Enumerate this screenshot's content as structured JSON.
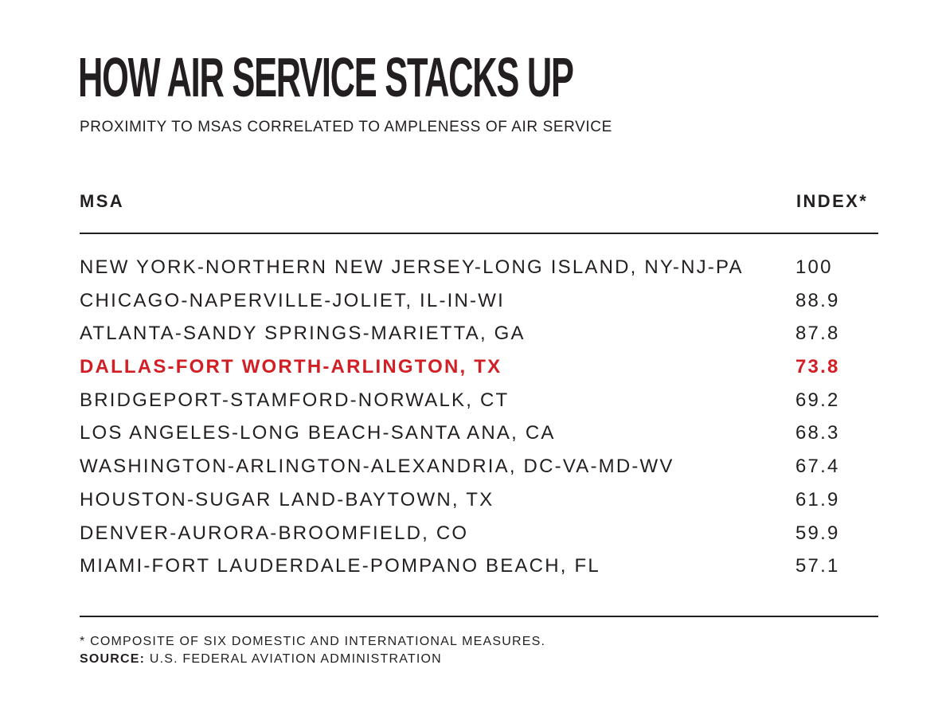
{
  "chart_data": {
    "type": "table",
    "title": "HOW AIR SERVICE STACKS UP",
    "subtitle": "PROXIMITY TO MSAS CORRELATED TO AMPLENESS OF AIR SERVICE",
    "columns": [
      "MSA",
      "INDEX*"
    ],
    "rows": [
      {
        "msa": "NEW YORK-NORTHERN NEW JERSEY-LONG ISLAND, NY-NJ-PA",
        "index": "100"
      },
      {
        "msa": "CHICAGO-NAPERVILLE-JOLIET, IL-IN-WI",
        "index": "88.9"
      },
      {
        "msa": "ATLANTA-SANDY SPRINGS-MARIETTA, GA",
        "index": "87.8"
      },
      {
        "msa": "DALLAS-FORT WORTH-ARLINGTON, TX",
        "index": "73.8",
        "highlight": true
      },
      {
        "msa": "BRIDGEPORT-STAMFORD-NORWALK, CT",
        "index": "69.2"
      },
      {
        "msa": "LOS ANGELES-LONG BEACH-SANTA ANA, CA",
        "index": "68.3"
      },
      {
        "msa": "WASHINGTON-ARLINGTON-ALEXANDRIA, DC-VA-MD-WV",
        "index": "67.4"
      },
      {
        "msa": "HOUSTON-SUGAR LAND-BAYTOWN, TX",
        "index": "61.9"
      },
      {
        "msa": "DENVER-AURORA-BROOMFIELD, CO",
        "index": "59.9"
      },
      {
        "msa": "MIAMI-FORT LAUDERDALE-POMPANO BEACH, FL",
        "index": "57.1"
      }
    ],
    "footnote": "* COMPOSITE OF SIX DOMESTIC AND INTERNATIONAL MEASURES.",
    "source_label": "SOURCE:",
    "source_text": " U.S. FEDERAL AVIATION ADMINISTRATION",
    "colors": {
      "text": "#231f20",
      "highlight": "#d21f26"
    }
  }
}
